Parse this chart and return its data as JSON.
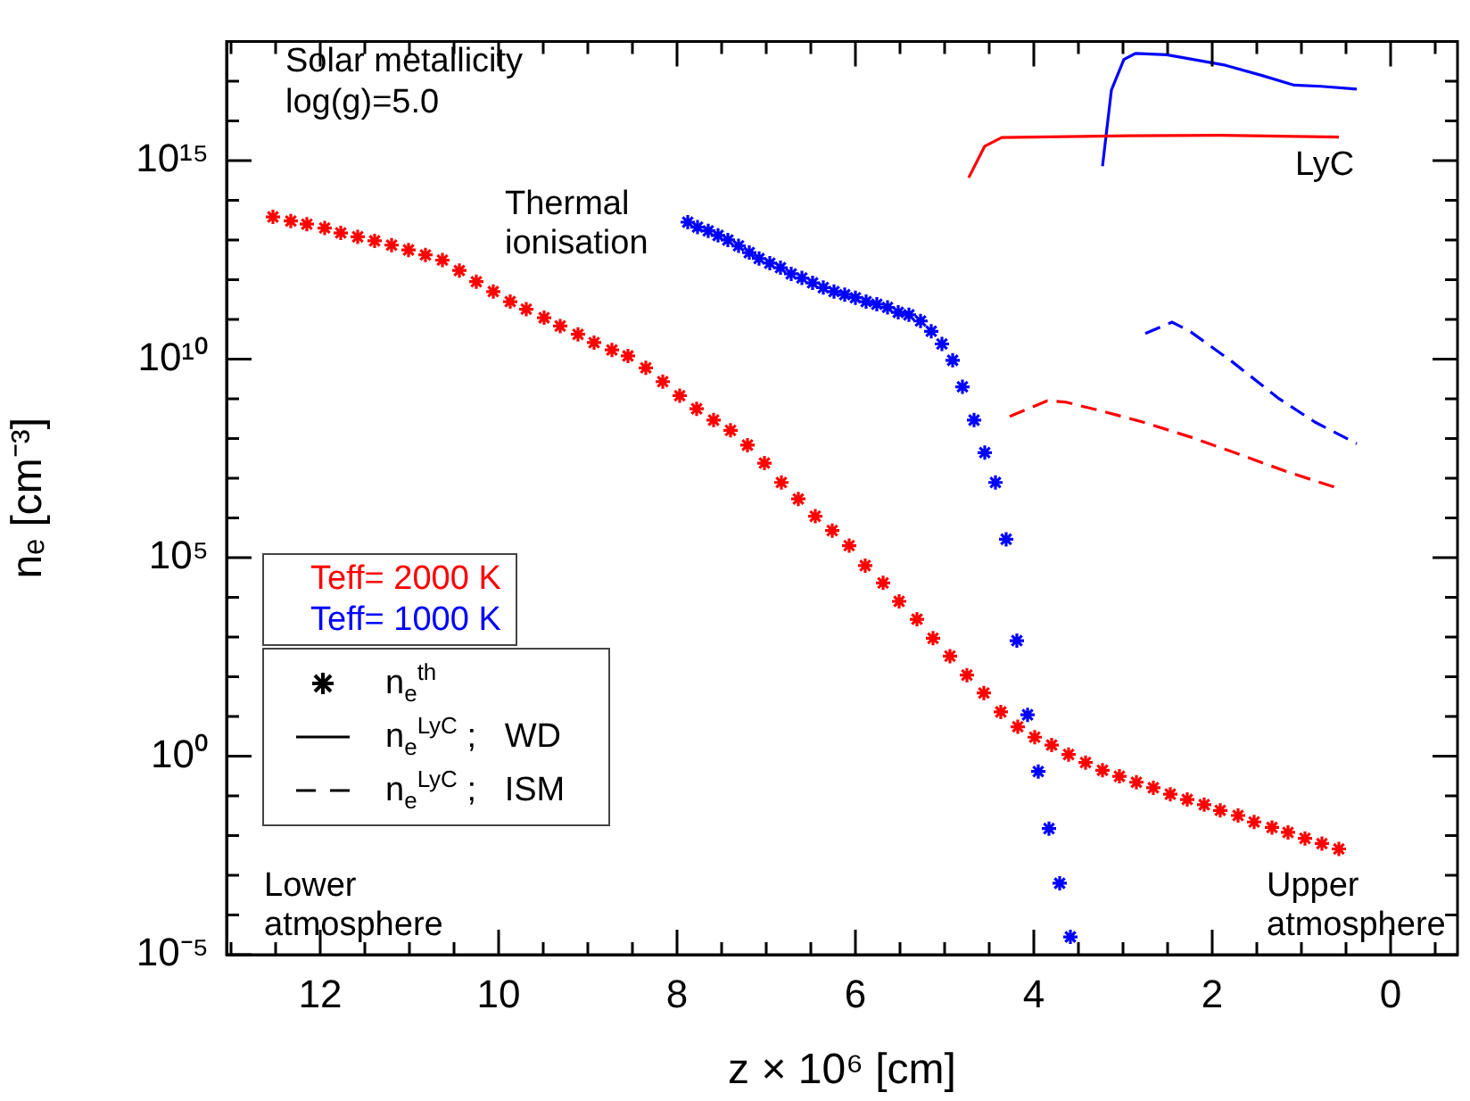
{
  "chart_data": {
    "type": "scatter",
    "xlabel": "z × 10⁶ [cm]",
    "ylabel": "nₑ [cm⁻³]",
    "log": "y",
    "grid": false,
    "legend": "left",
    "xlim": [
      13.05,
      -0.75
    ],
    "xticks": [
      {
        "value": 13,
        "label": null
      },
      {
        "value": 12.5,
        "label": null
      },
      12,
      {
        "value": 11.5,
        "label": null
      },
      {
        "value": 11,
        "label": null
      },
      {
        "value": 10.5,
        "label": null
      },
      10,
      {
        "value": 9.5,
        "label": null
      },
      {
        "value": 9,
        "label": null
      },
      {
        "value": 8.5,
        "label": null
      },
      8,
      {
        "value": 7.5,
        "label": null
      },
      {
        "value": 7,
        "label": null
      },
      {
        "value": 6.5,
        "label": null
      },
      6,
      {
        "value": 5.5,
        "label": null
      },
      {
        "value": 5,
        "label": null
      },
      {
        "value": 4.5,
        "label": null
      },
      4,
      {
        "value": 3.5,
        "label": null
      },
      {
        "value": 3,
        "label": null
      },
      {
        "value": 2.5,
        "label": null
      },
      2,
      {
        "value": 1.5,
        "label": null
      },
      {
        "value": 1,
        "label": null
      },
      {
        "value": 0.5,
        "label": null
      },
      0,
      {
        "value": -0.5,
        "label": null
      }
    ],
    "ylim": [
      1e-05,
      1e+18
    ],
    "yticks": [
      {
        "value": 1e-05,
        "label": "10⁻⁵"
      },
      {
        "value": 0.0001,
        "label": null
      },
      {
        "value": 0.001,
        "label": null
      },
      {
        "value": 0.01,
        "label": null
      },
      {
        "value": 0.1,
        "label": null
      },
      {
        "value": 1,
        "label": "10⁰"
      },
      {
        "value": 10,
        "label": null
      },
      {
        "value": 100,
        "label": null
      },
      {
        "value": 1000.0,
        "label": null
      },
      {
        "value": 10000.0,
        "label": null
      },
      {
        "value": 100000.0,
        "label": "10⁵"
      },
      {
        "value": 1000000.0,
        "label": null
      },
      {
        "value": 10000000.0,
        "label": null
      },
      {
        "value": 100000000.0,
        "label": null
      },
      {
        "value": 1000000000.0,
        "label": null
      },
      {
        "value": 10000000000.0,
        "label": "10¹⁰"
      },
      {
        "value": 100000000000.0,
        "label": null
      },
      {
        "value": 1000000000000.0,
        "label": null
      },
      {
        "value": 10000000000000.0,
        "label": null
      },
      {
        "value": 100000000000000.0,
        "label": null
      },
      {
        "value": 1000000000000000.0,
        "label": "10¹⁵"
      },
      {
        "value": 1e+16,
        "label": null
      },
      {
        "value": 1e+17,
        "label": null
      },
      {
        "value": 1e+18,
        "label": null
      }
    ],
    "annotations": [
      "Solar metallicity",
      "log(g)=5.0",
      "Thermal ionisation",
      "LyC",
      "Lower atmosphere",
      "Upper atmosphere",
      "n$_{e}$$^{th}$",
      "n$_{e}$$^{LyC}$ ;   WD",
      "n$_{e}$$^{LyC}$ ;   ISM"
    ],
    "series": [
      {
        "name": "Teff= 2000 K",
        "type": "scatter",
        "marker": "cross",
        "color": "#ff0000",
        "x": [
          12.53,
          12.33,
          12.15,
          11.95,
          11.77,
          11.58,
          11.39,
          11.2,
          11.01,
          10.82,
          10.63,
          10.44,
          10.25,
          10.06,
          9.87,
          9.69,
          9.49,
          9.31,
          9.11,
          8.93,
          8.73,
          8.55,
          8.35,
          8.16,
          7.97,
          7.78,
          7.59,
          7.4,
          7.21,
          7.02,
          6.83,
          6.64,
          6.45,
          6.26,
          6.07,
          5.89,
          5.69,
          5.51,
          5.31,
          5.13,
          4.94,
          4.75,
          4.56,
          4.37,
          4.18,
          3.99,
          3.8,
          3.61,
          3.42,
          3.23,
          3.04,
          2.85,
          2.66,
          2.47,
          2.28,
          2.09,
          1.91,
          1.71,
          1.53,
          1.33,
          1.15,
          0.96,
          0.77,
          0.58
        ],
        "values": [
          38000000000000.0,
          30000000000000.0,
          25000000000000.0,
          20000000000000.0,
          15000000000000.0,
          12000000000000.0,
          9500000000000.0,
          7400000000000.0,
          5600000000000.0,
          4200000000000.0,
          3100000000000.0,
          1700000000000.0,
          890000000000.0,
          500000000000.0,
          280000000000.0,
          180000000000.0,
          110000000000.0,
          68000000000.0,
          42000000000.0,
          26000000000.0,
          17000000000.0,
          12000000000.0,
          6000000000.0,
          2700000000.0,
          1200000000.0,
          560000000.0,
          290000000.0,
          160000000.0,
          68000000.0,
          24000000.0,
          7800000.0,
          3000000.0,
          1100000.0,
          480000.0,
          200000.0,
          63000.0,
          23000.0,
          7900.0,
          2800.0,
          930,
          330,
          110,
          39,
          13,
          5.5,
          3.0,
          1.9,
          1.1,
          0.69,
          0.44,
          0.31,
          0.22,
          0.16,
          0.11,
          0.081,
          0.06,
          0.043,
          0.032,
          0.022,
          0.016,
          0.012,
          0.0085,
          0.0063,
          0.0046
        ]
      },
      {
        "name": "Teff= 1000 K",
        "type": "scatter",
        "marker": "cross",
        "color": "#0000ff",
        "x": [
          7.88,
          7.77,
          7.65,
          7.54,
          7.43,
          7.31,
          7.19,
          7.08,
          6.96,
          6.84,
          6.72,
          6.6,
          6.48,
          6.36,
          6.24,
          6.12,
          6.0,
          5.88,
          5.76,
          5.64,
          5.52,
          5.4,
          5.27,
          5.15,
          5.03,
          4.91,
          4.8,
          4.67,
          4.55,
          4.43,
          4.31,
          4.19,
          4.07,
          3.95,
          3.83,
          3.71,
          3.59
        ],
        "values": [
          28000000000000.0,
          21000000000000.0,
          17000000000000.0,
          13000000000000.0,
          10000000000000.0,
          7100000000000.0,
          4800000000000.0,
          3400000000000.0,
          2600000000000.0,
          2000000000000.0,
          1400000000000.0,
          1100000000000.0,
          830000000000.0,
          630000000000.0,
          500000000000.0,
          420000000000.0,
          350000000000.0,
          280000000000.0,
          240000000000.0,
          200000000000.0,
          150000000000.0,
          130000000000.0,
          91000000000.0,
          50000000000.0,
          24000000000.0,
          9300000000.0,
          2000000000.0,
          290000000.0,
          44000000.0,
          7800000.0,
          290000.0,
          810,
          11,
          0.41,
          0.015,
          0.00063,
          2.8e-05
        ]
      },
      {
        "type": "line",
        "line_style": "solid",
        "color": "#ff0000",
        "x": [
          4.73,
          4.55,
          4.36,
          2.91,
          1.91,
          0.58
        ],
        "values": [
          370000000000000.0,
          2300000000000000.0,
          3800000000000000.0,
          4200000000000000.0,
          4300000000000000.0,
          3900000000000000.0
        ]
      },
      {
        "type": "line",
        "line_style": "solid",
        "color": "#0000ff",
        "x": [
          3.23,
          3.13,
          2.99,
          2.86,
          2.51,
          1.85,
          1.45,
          1.08,
          0.78,
          0.38
        ],
        "values": [
          720000000000000.0,
          6e+16,
          3.5e+17,
          5e+17,
          4.6e+17,
          2.5e+17,
          1.4e+17,
          7.9e+16,
          7.4e+16,
          6.3e+16
        ]
      },
      {
        "type": "line",
        "line_style": "dashed",
        "color": "#ff0000",
        "x": [
          4.27,
          3.85,
          3.65,
          3.25,
          2.78,
          2.25,
          1.71,
          1.18,
          0.58
        ],
        "values": [
          360000000.0,
          890000000.0,
          830000000.0,
          500000000.0,
          260000000.0,
          110000000.0,
          41000000.0,
          15000000.0,
          5500000.0
        ]
      },
      {
        "type": "line",
        "line_style": "dashed",
        "color": "#0000ff",
        "x": [
          2.75,
          2.45,
          2.25,
          1.78,
          1.25,
          0.85,
          0.38
        ],
        "values": [
          44000000000.0,
          85000000000.0,
          50000000000.0,
          8700000000.0,
          1000000000.0,
          260000000.0,
          74000000.0
        ]
      }
    ]
  }
}
